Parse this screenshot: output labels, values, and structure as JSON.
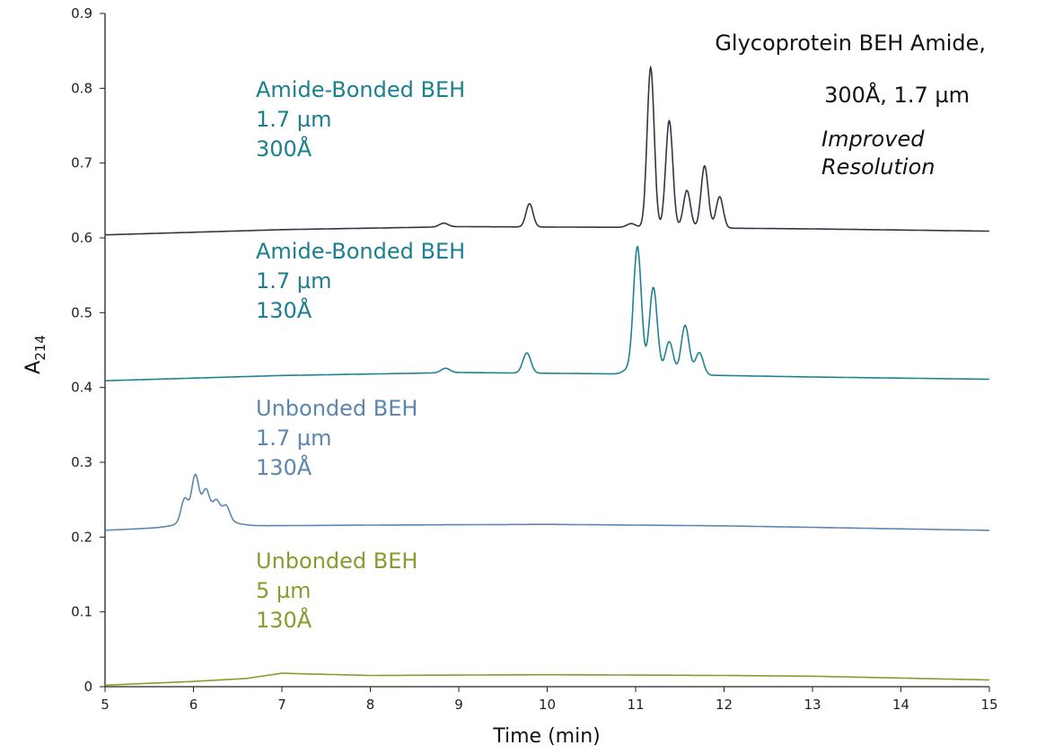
{
  "chart_data": {
    "type": "line",
    "title": "Glycoprotein BEH Amide, 300Å, 1.7 µm",
    "title_lines": [
      "Glycoprotein BEH Amide,",
      "300Å, 1.7 µm"
    ],
    "annotation_lines": [
      "Improved",
      "Resolution"
    ],
    "xlabel": "Time (min)",
    "ylabel_main": "A",
    "ylabel_sub": "214",
    "xlim": [
      5,
      15
    ],
    "ylim": [
      0,
      0.9
    ],
    "xticks": [
      "5",
      "6",
      "7",
      "8",
      "9",
      "10",
      "11",
      "12",
      "13",
      "14",
      "15"
    ],
    "yticks": [
      "0",
      "0.1",
      "0.2",
      "0.3",
      "0.4",
      "0.5",
      "0.6",
      "0.7",
      "0.8",
      "0.9"
    ],
    "grid": false,
    "series": [
      {
        "name": "Amide-Bonded BEH 1.7 µm 300Å",
        "label_lines": [
          "Amide-Bonded BEH",
          "1.7 µm",
          "300Å"
        ],
        "color": "#3b3045",
        "label_color": "#1b7f8f",
        "baseline": [
          [
            5,
            0.604
          ],
          [
            7,
            0.611
          ],
          [
            9,
            0.615
          ],
          [
            11,
            0.614
          ],
          [
            13,
            0.612
          ],
          [
            15,
            0.609
          ]
        ],
        "peaks": [
          [
            8.83,
            0.005,
            0.05
          ],
          [
            9.8,
            0.031,
            0.04
          ],
          [
            10.95,
            0.005,
            0.05
          ],
          [
            11.17,
            0.214,
            0.04
          ],
          [
            11.38,
            0.143,
            0.04
          ],
          [
            11.58,
            0.05,
            0.04
          ],
          [
            11.78,
            0.083,
            0.04
          ],
          [
            11.95,
            0.042,
            0.04
          ]
        ]
      },
      {
        "name": "Amide-Bonded BEH 1.7 µm 130Å",
        "label_lines": [
          "Amide-Bonded BEH",
          "1.7 µm",
          "130Å"
        ],
        "color": "#1f8391",
        "label_color": "#1b7f8f",
        "baseline": [
          [
            5,
            0.409
          ],
          [
            7,
            0.416
          ],
          [
            9,
            0.42
          ],
          [
            11,
            0.418
          ],
          [
            13,
            0.414
          ],
          [
            15,
            0.411
          ]
        ],
        "peaks": [
          [
            8.85,
            0.006,
            0.05
          ],
          [
            9.77,
            0.027,
            0.045
          ],
          [
            10.9,
            0.005,
            0.05
          ],
          [
            11.02,
            0.17,
            0.045
          ],
          [
            11.2,
            0.116,
            0.045
          ],
          [
            11.38,
            0.044,
            0.045
          ],
          [
            11.56,
            0.066,
            0.045
          ],
          [
            11.72,
            0.03,
            0.045
          ]
        ]
      },
      {
        "name": "Unbonded BEH 1.7 µm 130Å",
        "label_lines": [
          "Unbonded BEH",
          "1.7 µm",
          "130Å"
        ],
        "color": "#5b87b0",
        "label_color": "#5b86ae",
        "baseline": [
          [
            5,
            0.209
          ],
          [
            5.7,
            0.213
          ],
          [
            6.6,
            0.215
          ],
          [
            8,
            0.216
          ],
          [
            10,
            0.217
          ],
          [
            12,
            0.215
          ],
          [
            15,
            0.209
          ]
        ],
        "peaks": [
          [
            6.15,
            0.018,
            0.2
          ],
          [
            5.9,
            0.03,
            0.04
          ],
          [
            6.02,
            0.055,
            0.04
          ],
          [
            6.14,
            0.032,
            0.04
          ],
          [
            6.26,
            0.02,
            0.04
          ],
          [
            6.37,
            0.018,
            0.04
          ]
        ]
      },
      {
        "name": "Unbonded BEH 5 µm 130Å",
        "label_lines": [
          "Unbonded BEH",
          "5 µm",
          "130Å"
        ],
        "color": "#8a9a2e",
        "label_color": "#8a9a2e",
        "baseline": [
          [
            5,
            0.002
          ],
          [
            6,
            0.007
          ],
          [
            6.6,
            0.011
          ],
          [
            7,
            0.018
          ],
          [
            7.3,
            0.017
          ],
          [
            8,
            0.015
          ],
          [
            10,
            0.016
          ],
          [
            12,
            0.015
          ],
          [
            13,
            0.014
          ],
          [
            15,
            0.009
          ]
        ],
        "peaks": []
      }
    ]
  }
}
